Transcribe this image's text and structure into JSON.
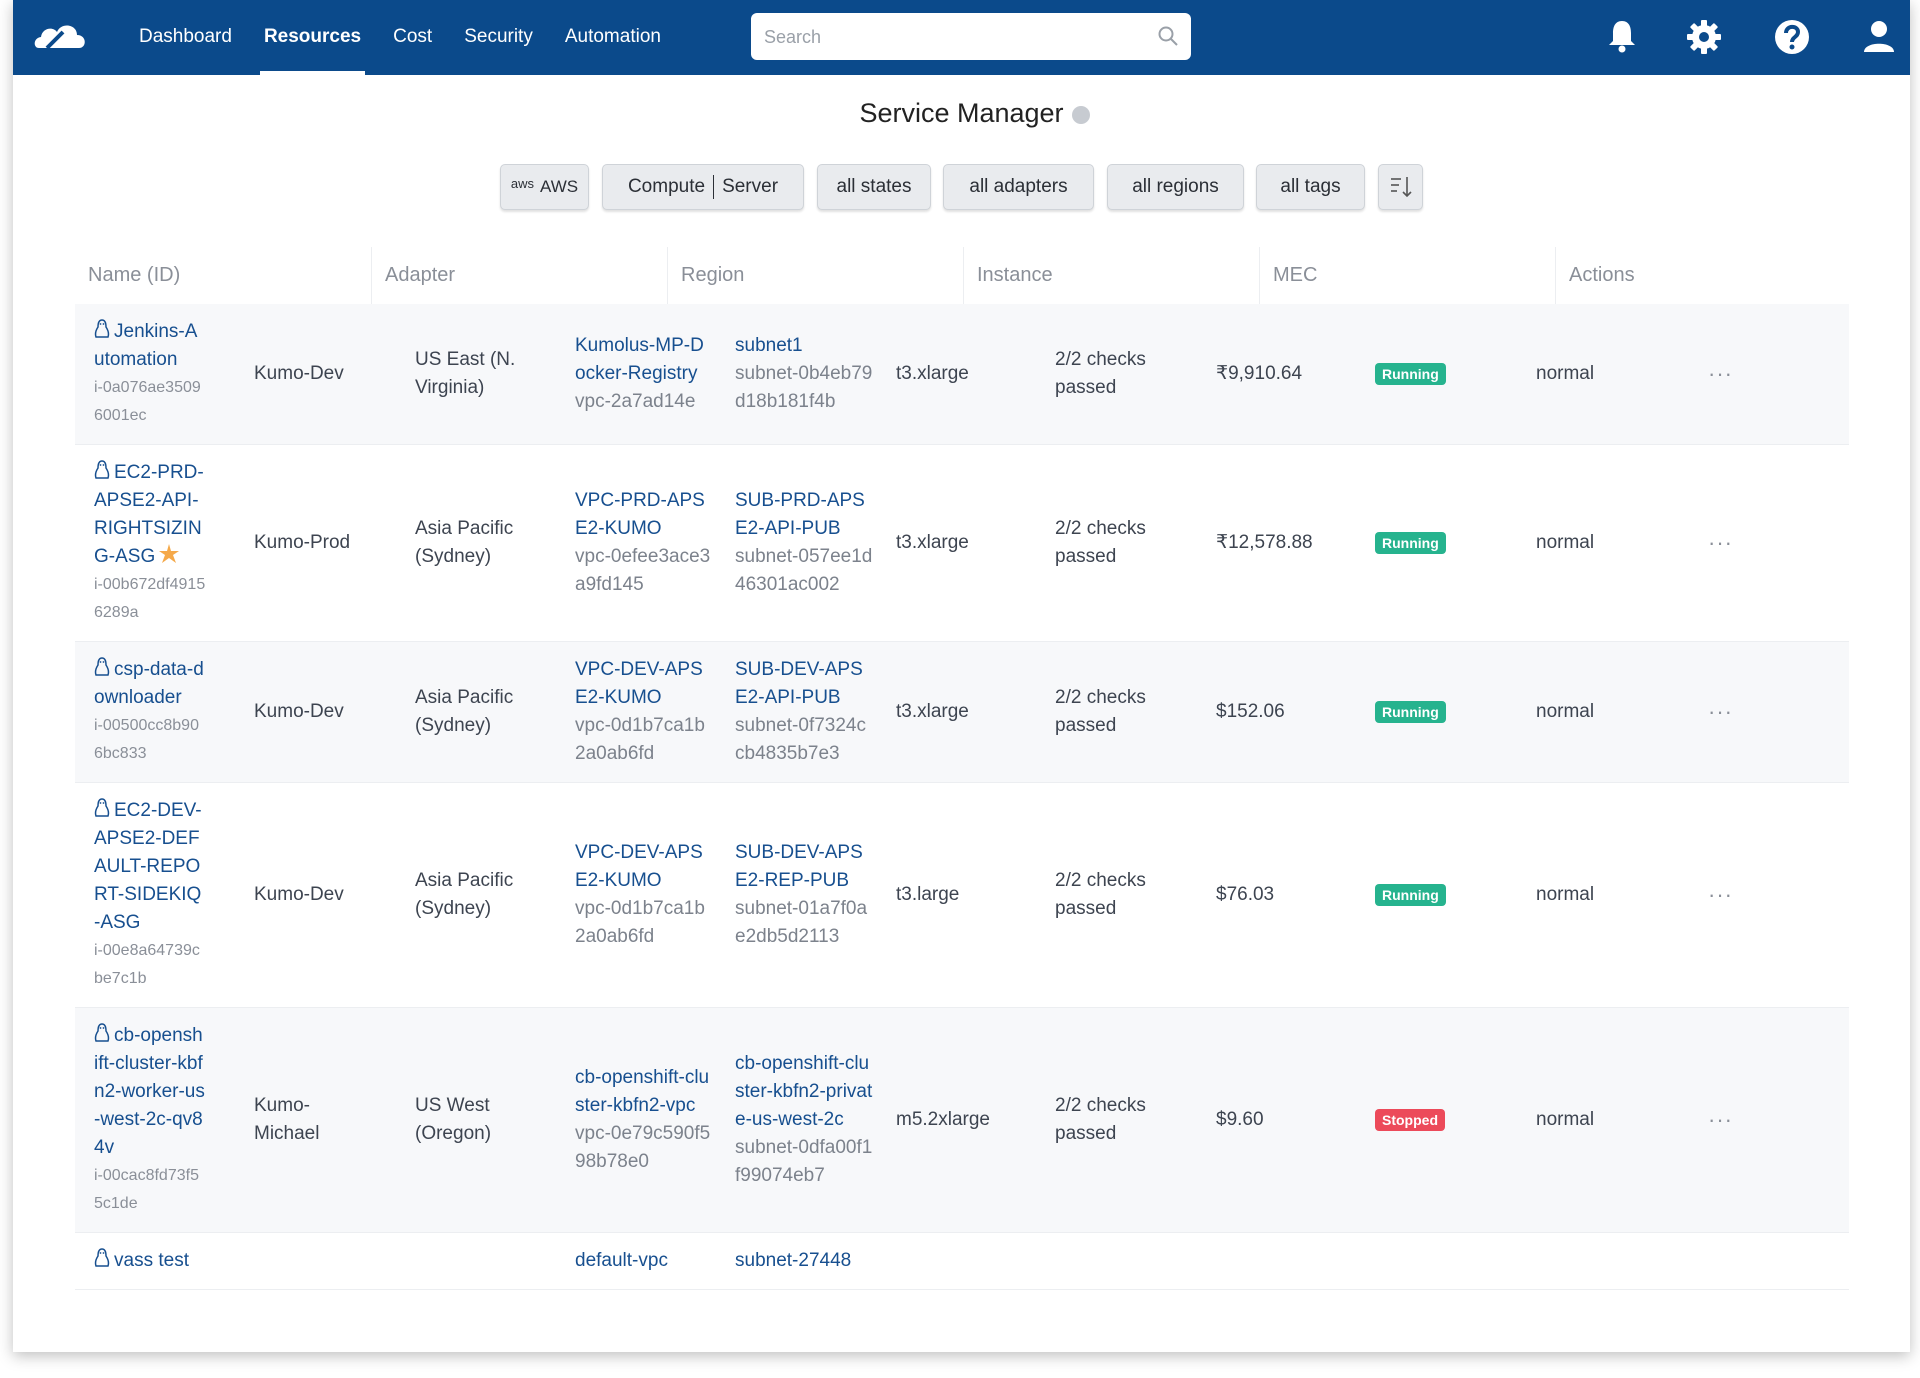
{
  "nav": {
    "items": [
      "Dashboard",
      "Resources",
      "Cost",
      "Security",
      "Automation"
    ],
    "search_placeholder": "Search"
  },
  "header": {
    "title": "Service Manager"
  },
  "filters": {
    "provider": {
      "logo": "aws",
      "label": "AWS"
    },
    "service": {
      "category": "Compute",
      "type": "Server"
    },
    "options": [
      "all states",
      "all adapters",
      "all regions",
      "all tags"
    ]
  },
  "table": {
    "columns": [
      "Name (ID)",
      "Adapter",
      "Region",
      "Instance",
      "MEC",
      "Actions"
    ],
    "rows": [
      {
        "name": "Jenkins-Automation",
        "id": "i-0a076ae35096001ec",
        "adapter": "Kumo-Dev",
        "region": "US East (N. Virginia)",
        "vpc_name": "Kumolus-MP-Docker-Registry",
        "vpc_id": "vpc-2a7ad14e",
        "subnet_name": "subnet1",
        "subnet_id": "subnet-0b4eb79d18b181f4b",
        "instance_type": "t3.xlarge",
        "checks": "2/2 checks passed",
        "mec": "₹9,910.64",
        "status": "Running",
        "state": "normal"
      },
      {
        "name": "EC2-PRD-APSE2-API-RIGHTSIZING-ASG",
        "favorite": true,
        "id": "i-00b672df49156289a",
        "adapter": "Kumo-Prod",
        "region": "Asia Pacific (Sydney)",
        "vpc_name": "VPC-PRD-APSE2-KUMO",
        "vpc_id": "vpc-0efee3ace3a9fd145",
        "subnet_name": "SUB-PRD-APSE2-API-PUB",
        "subnet_id": "subnet-057ee1d46301ac002",
        "instance_type": "t3.xlarge",
        "checks": "2/2 checks passed",
        "mec": "₹12,578.88",
        "status": "Running",
        "state": "normal"
      },
      {
        "name": "csp-data-downloader",
        "id": "i-00500cc8b906bc833",
        "adapter": "Kumo-Dev",
        "region": "Asia Pacific (Sydney)",
        "vpc_name": "VPC-DEV-APSE2-KUMO",
        "vpc_id": "vpc-0d1b7ca1b2a0ab6fd",
        "subnet_name": "SUB-DEV-APSE2-API-PUB",
        "subnet_id": "subnet-0f7324ccb4835b7e3",
        "instance_type": "t3.xlarge",
        "checks": "2/2 checks passed",
        "mec": "$152.06",
        "status": "Running",
        "state": "normal"
      },
      {
        "name": "EC2-DEV-APSE2-DEFAULT-REPORT-SIDEKIQ-ASG",
        "id": "i-00e8a64739cbe7c1b",
        "adapter": "Kumo-Dev",
        "region": "Asia Pacific (Sydney)",
        "vpc_name": "VPC-DEV-APSE2-KUMO",
        "vpc_id": "vpc-0d1b7ca1b2a0ab6fd",
        "subnet_name": "SUB-DEV-APSE2-REP-PUB",
        "subnet_id": "subnet-01a7f0ae2db5d2113",
        "instance_type": "t3.large",
        "checks": "2/2 checks passed",
        "mec": "$76.03",
        "status": "Running",
        "state": "normal"
      },
      {
        "name": "cb-openshift-cluster-kbfn2-worker-us-west-2c-qv84v",
        "id": "i-00cac8fd73f55c1de",
        "adapter": "Kumo-Michael",
        "region": "US West (Oregon)",
        "vpc_name": "cb-openshift-cluster-kbfn2-vpc",
        "vpc_id": "vpc-0e79c590f598b78e0",
        "subnet_name": "cb-openshift-cluster-kbfn2-private-us-west-2c",
        "subnet_id": "subnet-0dfa00f1f99074eb7",
        "instance_type": "m5.2xlarge",
        "checks": "2/2 checks passed",
        "mec": "$9.60",
        "status": "Stopped",
        "state": "normal"
      },
      {
        "name": "vass test",
        "vpc_name": "default-vpc",
        "subnet_name": "subnet-27448"
      }
    ]
  }
}
